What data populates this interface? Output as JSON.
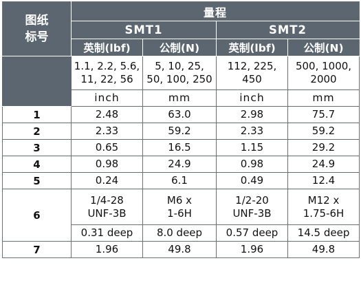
{
  "header": {
    "drawing_number": "图纸\n标号",
    "drawing_number_l1": "图纸",
    "drawing_number_l2": "标号",
    "range": "量程",
    "models": [
      "SMT1",
      "SMT2"
    ],
    "unit_systems": [
      "英制(lbf)",
      "公制(N)",
      "英制(lbf)",
      "公制(N)"
    ]
  },
  "force_ranges": [
    [
      "1.1, 2.2, 5.6,",
      "11, 22, 56"
    ],
    [
      "5, 10, 25,",
      "50, 100, 250"
    ],
    [
      "112, 225,",
      "450"
    ],
    [
      "500, 1000,",
      "2000"
    ]
  ],
  "units": [
    "inch",
    "mm",
    "inch",
    "mm"
  ],
  "rows": [
    {
      "id": "1",
      "values": [
        "2.48",
        "63.0",
        "2.98",
        "75.7"
      ]
    },
    {
      "id": "2",
      "values": [
        "2.33",
        "59.2",
        "2.33",
        "59.2"
      ]
    },
    {
      "id": "3",
      "values": [
        "0.65",
        "16.5",
        "1.15",
        "29.2"
      ]
    },
    {
      "id": "4",
      "values": [
        "0.98",
        "24.9",
        "0.98",
        "24.9"
      ]
    },
    {
      "id": "5",
      "values": [
        "0.24",
        "6.1",
        "0.49",
        "12.4"
      ]
    }
  ],
  "row6": {
    "id": "6",
    "thread": [
      [
        "1/4-28",
        "UNF-3B"
      ],
      [
        "M6 x",
        "1-6H"
      ],
      [
        "1/2-20",
        "UNF-3B"
      ],
      [
        "M12 x",
        "1.75-6H"
      ]
    ],
    "depth": [
      "0.31 deep",
      "8.0 deep",
      "0.57 deep",
      "14.5 deep"
    ]
  },
  "row7": {
    "id": "7",
    "values": [
      "1.96",
      "49.8",
      "1.96",
      "49.8"
    ]
  },
  "colors": {
    "header_bg": "#5b6670",
    "header_text": "#ffffff",
    "border": "#6a6f74"
  }
}
